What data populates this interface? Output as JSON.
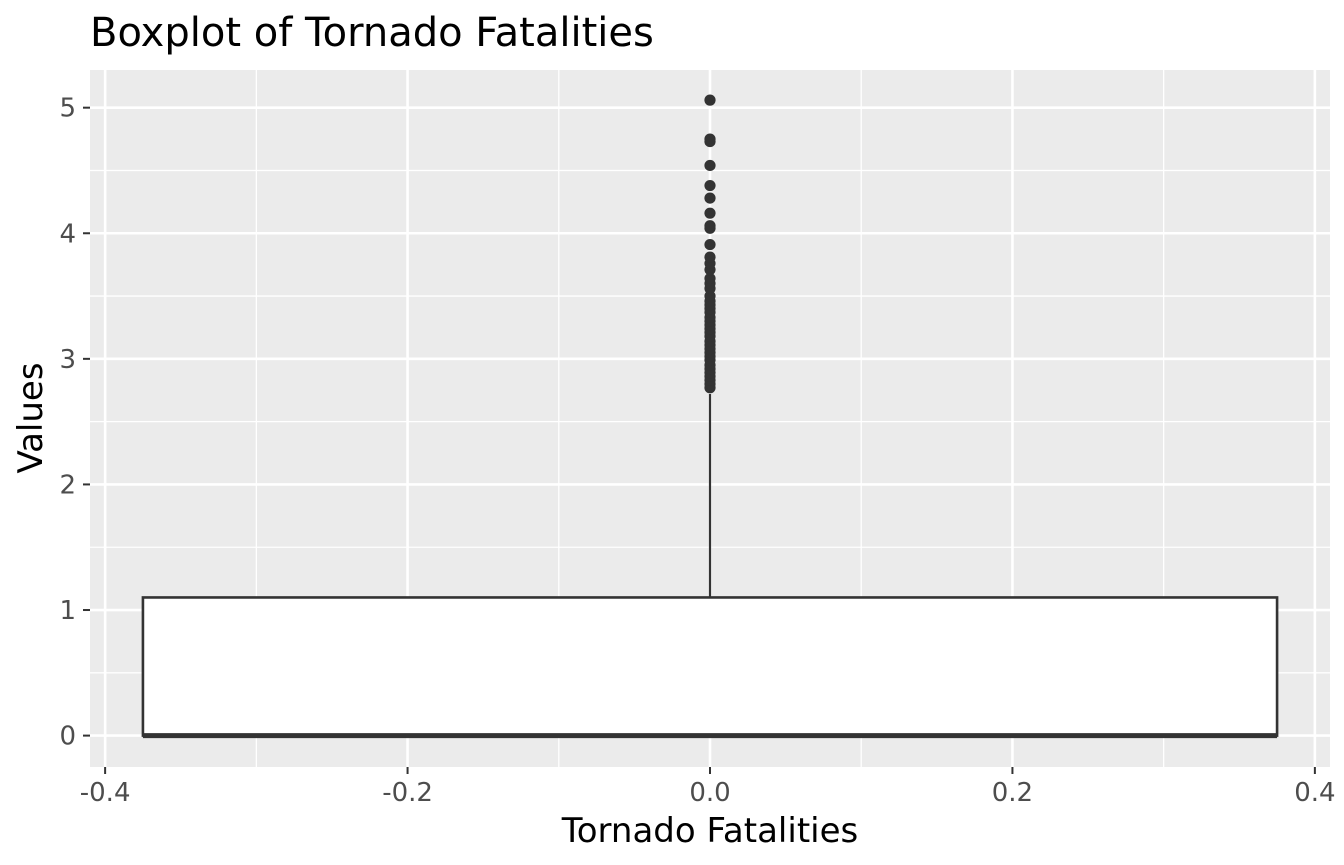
{
  "chart_data": {
    "type": "boxplot",
    "title": "Boxplot of Tornado Fatalities",
    "xlabel": "Tornado Fatalities",
    "ylabel": "Values",
    "xlim": [
      -0.41,
      0.41
    ],
    "ylim": [
      -0.25,
      5.3
    ],
    "x_ticks": [
      -0.4,
      -0.2,
      0.0,
      0.2,
      0.4
    ],
    "x_tick_labels": [
      "-0.4",
      "-0.2",
      "0.0",
      "0.2",
      "0.4"
    ],
    "y_ticks": [
      0,
      1,
      2,
      3,
      4,
      5
    ],
    "y_tick_labels": [
      "0",
      "1",
      "2",
      "3",
      "4",
      "5"
    ],
    "grid": true,
    "box": {
      "x": 0.0,
      "x_range": [
        -0.375,
        0.375
      ],
      "q1": 0.0,
      "median": 0.0,
      "q3": 1.1,
      "whisker_low": 0.0,
      "whisker_high": 2.72
    },
    "outliers": [
      2.77,
      2.8,
      2.83,
      2.86,
      2.89,
      2.92,
      2.95,
      2.99,
      3.02,
      3.05,
      3.08,
      3.11,
      3.14,
      3.18,
      3.21,
      3.24,
      3.27,
      3.3,
      3.33,
      3.37,
      3.4,
      3.43,
      3.46,
      3.5,
      3.56,
      3.6,
      3.64,
      3.71,
      3.76,
      3.81,
      3.91,
      4.04,
      4.06,
      4.16,
      4.28,
      4.38,
      4.54,
      4.73,
      4.75,
      5.06
    ],
    "colors": {
      "panel": "#ebebeb",
      "grid": "#ffffff",
      "box_fill": "#ffffff",
      "box_line": "#333333",
      "point": "#333333"
    }
  }
}
